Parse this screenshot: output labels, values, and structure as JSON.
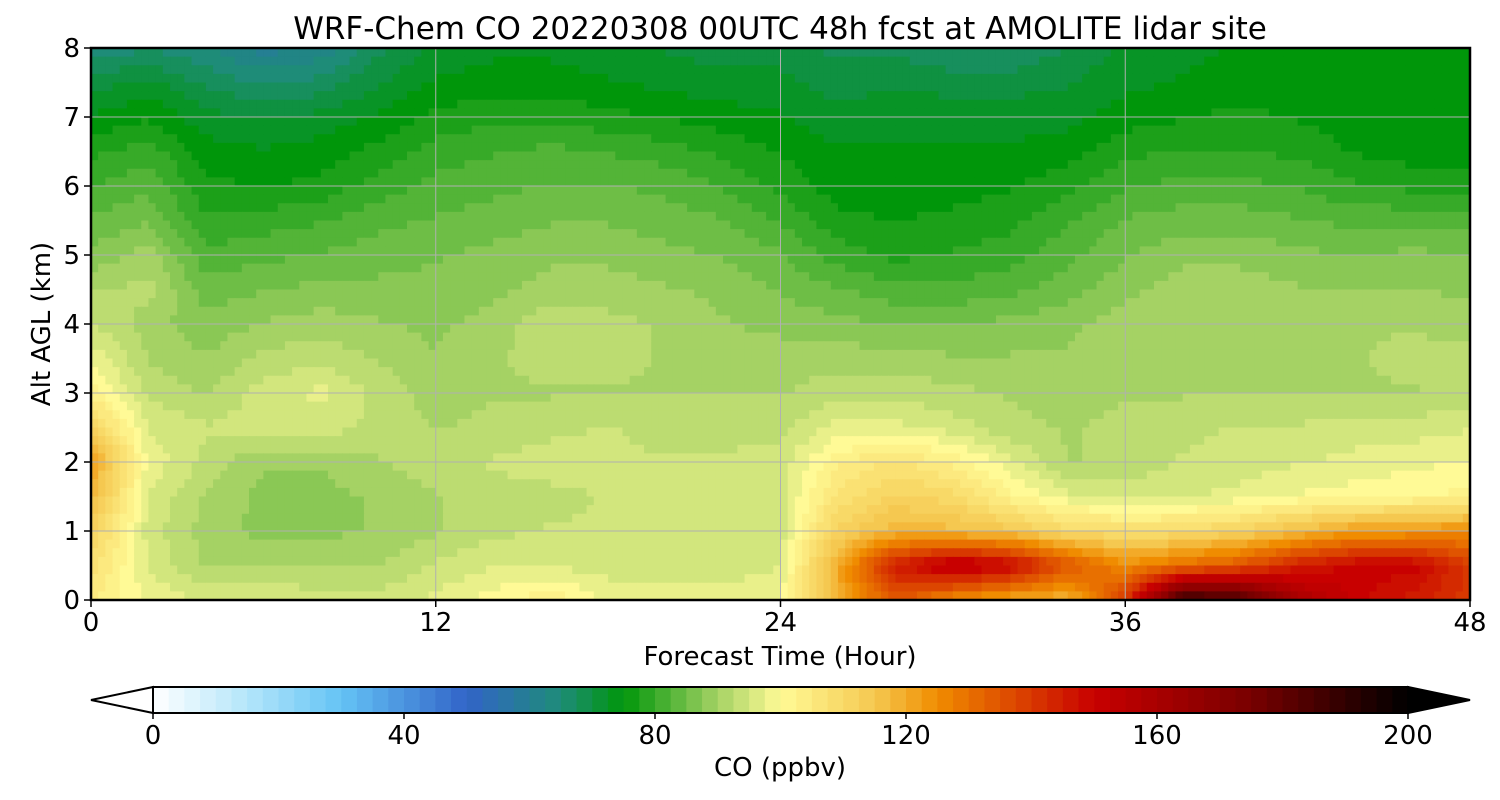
{
  "chart_data": {
    "type": "heatmap",
    "title": "WRF-Chem CO  20220308 00UTC 48h fcst at AMOLITE lidar site",
    "xlabel": "Forecast Time (Hour)",
    "ylabel": "Alt AGL (km)",
    "xlim": [
      0,
      48
    ],
    "ylim": [
      0,
      8
    ],
    "x_ticks": [
      0,
      12,
      24,
      36,
      48
    ],
    "y_ticks": [
      0,
      1,
      2,
      3,
      4,
      5,
      6,
      7,
      8
    ],
    "grid": true,
    "colorbar": {
      "label": "CO  (ppbv)",
      "range": [
        0,
        200
      ],
      "ticks": [
        0,
        40,
        80,
        120,
        160,
        200
      ],
      "extend": "both",
      "orientation": "horizontal",
      "colors": [
        {
          "v": 0,
          "c": "#ffffff"
        },
        {
          "v": 15,
          "c": "#b4e6fa"
        },
        {
          "v": 30,
          "c": "#64c3f5"
        },
        {
          "v": 50,
          "c": "#3264c8"
        },
        {
          "v": 65,
          "c": "#1e8c78"
        },
        {
          "v": 75,
          "c": "#00960a"
        },
        {
          "v": 90,
          "c": "#a5d264"
        },
        {
          "v": 100,
          "c": "#fffa96"
        },
        {
          "v": 115,
          "c": "#f5c850"
        },
        {
          "v": 125,
          "c": "#f08c00"
        },
        {
          "v": 150,
          "c": "#c80000"
        },
        {
          "v": 175,
          "c": "#780000"
        },
        {
          "v": 200,
          "c": "#000000"
        }
      ]
    },
    "z_times": [
      0,
      2,
      4,
      6,
      8,
      10,
      12,
      14,
      16,
      18,
      20,
      22,
      24,
      26,
      28,
      30,
      32,
      34,
      36,
      38,
      40,
      42,
      44,
      46,
      48
    ],
    "z_altitudes": [
      0,
      0.5,
      1,
      1.5,
      2,
      2.5,
      3,
      3.5,
      4,
      4.5,
      5,
      5.5,
      6,
      6.5,
      7,
      7.5,
      8
    ],
    "z_values_ppbv": [
      [
        104,
        98,
        96,
        96,
        95,
        95,
        97,
        100,
        103,
        98,
        97,
        97,
        99,
        120,
        135,
        125,
        120,
        118,
        140,
        190,
        185,
        160,
        150,
        145,
        140
      ],
      [
        108,
        96,
        91,
        91,
        91,
        91,
        94,
        96,
        96,
        95,
        95,
        95,
        96,
        120,
        145,
        155,
        150,
        135,
        125,
        130,
        135,
        145,
        150,
        150,
        140
      ],
      [
        112,
        95,
        90,
        88,
        88,
        89,
        91,
        93,
        94,
        94,
        94,
        94,
        95,
        112,
        118,
        117,
        115,
        110,
        108,
        109,
        112,
        117,
        122,
        123,
        125
      ],
      [
        118,
        96,
        91,
        88,
        88,
        89,
        91,
        93,
        93,
        94,
        94,
        94,
        95,
        107,
        112,
        110,
        102,
        97,
        95,
        96,
        97,
        99,
        100,
        101,
        102
      ],
      [
        122,
        98,
        93,
        89,
        89,
        91,
        93,
        94,
        95,
        94,
        94,
        94,
        95,
        103,
        107,
        103,
        97,
        91,
        92,
        94,
        95,
        96,
        97,
        98,
        99
      ],
      [
        112,
        96,
        94,
        95,
        95,
        93,
        91,
        92,
        93,
        94,
        93,
        93,
        93,
        97,
        97,
        95,
        92,
        91,
        92,
        93,
        94,
        94,
        95,
        95,
        96
      ],
      [
        103,
        93,
        91,
        95,
        97,
        93,
        90,
        91,
        91,
        91,
        91,
        91,
        91,
        93,
        93,
        92,
        91,
        90,
        91,
        91,
        91,
        91,
        91,
        91,
        92
      ],
      [
        98,
        91,
        89,
        92,
        93,
        91,
        89,
        91,
        92,
        92,
        91,
        90,
        90,
        90,
        90,
        89,
        89,
        89,
        91,
        91,
        91,
        91,
        91,
        92,
        92
      ],
      [
        94,
        90,
        87,
        89,
        90,
        89,
        88,
        90,
        93,
        92,
        91,
        89,
        88,
        87,
        86,
        86,
        87,
        88,
        90,
        91,
        91,
        91,
        91,
        91,
        90
      ],
      [
        91,
        92,
        85,
        86,
        87,
        87,
        87,
        88,
        90,
        90,
        89,
        88,
        86,
        84,
        82,
        82,
        83,
        85,
        88,
        90,
        90,
        89,
        89,
        89,
        88
      ],
      [
        87,
        90,
        82,
        83,
        84,
        85,
        86,
        87,
        88,
        88,
        87,
        86,
        84,
        80,
        78,
        79,
        80,
        83,
        86,
        88,
        88,
        87,
        86,
        87,
        86
      ],
      [
        84,
        86,
        79,
        80,
        81,
        83,
        84,
        85,
        86,
        86,
        85,
        84,
        81,
        77,
        76,
        77,
        78,
        81,
        84,
        85,
        85,
        84,
        83,
        83,
        83
      ],
      [
        81,
        83,
        77,
        76,
        77,
        80,
        82,
        83,
        84,
        84,
        83,
        81,
        78,
        75,
        75,
        75,
        76,
        78,
        81,
        82,
        82,
        81,
        79,
        78,
        78
      ],
      [
        78,
        80,
        75,
        74,
        75,
        77,
        80,
        81,
        82,
        81,
        80,
        78,
        76,
        74,
        74,
        74,
        74,
        75,
        78,
        79,
        79,
        78,
        76,
        75,
        75
      ],
      [
        74,
        76,
        72,
        71,
        72,
        74,
        77,
        78,
        78,
        77,
        76,
        75,
        74,
        72,
        73,
        73,
        73,
        73,
        75,
        76,
        77,
        76,
        75,
        74,
        74
      ],
      [
        70,
        72,
        68,
        66,
        67,
        71,
        74,
        75,
        75,
        74,
        73,
        72,
        72,
        70,
        71,
        70,
        70,
        71,
        73,
        74,
        75,
        74,
        74,
        74,
        74
      ],
      [
        64,
        66,
        64,
        60,
        62,
        68,
        72,
        73,
        73,
        72,
        71,
        70,
        70,
        68,
        68,
        66,
        66,
        69,
        72,
        73,
        74,
        74,
        74,
        74,
        74
      ]
    ]
  }
}
